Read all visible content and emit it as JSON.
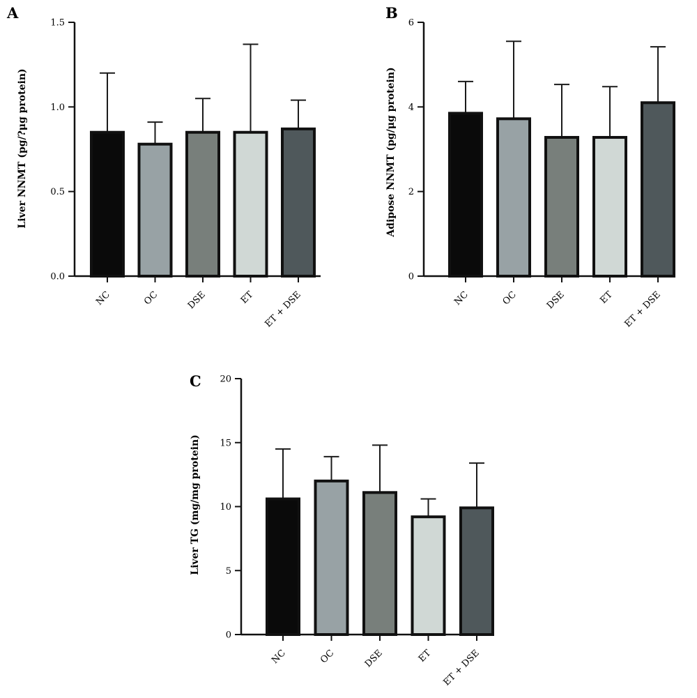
{
  "chart_data": [
    {
      "type": "bar",
      "panel": "A",
      "title": "",
      "xlabel": "",
      "ylabel": "Liver NNMT (pg/?μg protein)",
      "ylim": [
        0,
        1.5
      ],
      "yticks": [
        "0.0",
        "0.5",
        "1.0",
        "1.5"
      ],
      "categories": [
        "NC",
        "OC",
        "DSE",
        "ET",
        "ET + DSE"
      ],
      "values": [
        0.85,
        0.78,
        0.85,
        0.85,
        0.87
      ],
      "error_upper": [
        1.2,
        0.91,
        1.05,
        1.37,
        1.04
      ],
      "colors": [
        "#0a0a0a",
        "#98a2a5",
        "#787f7b",
        "#d0d8d5",
        "#4f585b"
      ]
    },
    {
      "type": "bar",
      "panel": "B",
      "title": "",
      "xlabel": "",
      "ylabel": "Adipose NNMT (pg/μg protein)",
      "ylim": [
        0,
        6
      ],
      "yticks": [
        "0",
        "2",
        "4",
        "6"
      ],
      "categories": [
        "NC",
        "OC",
        "DSE",
        "ET",
        "ET + DSE"
      ],
      "values": [
        3.85,
        3.72,
        3.28,
        3.28,
        4.1
      ],
      "error_upper": [
        4.6,
        5.55,
        4.53,
        4.48,
        5.42
      ],
      "colors": [
        "#0a0a0a",
        "#98a2a5",
        "#787f7b",
        "#d0d8d5",
        "#4f585b"
      ]
    },
    {
      "type": "bar",
      "panel": "C",
      "title": "",
      "xlabel": "",
      "ylabel": "Liver TG (mg/mg protein)",
      "ylim": [
        0,
        20
      ],
      "yticks": [
        "0",
        "5",
        "10",
        "15",
        "20"
      ],
      "categories": [
        "NC",
        "OC",
        "DSE",
        "ET",
        "ET + DSE"
      ],
      "values": [
        10.6,
        12.0,
        11.1,
        9.2,
        9.9
      ],
      "error_upper": [
        14.5,
        13.9,
        14.8,
        10.6,
        13.4
      ],
      "colors": [
        "#0a0a0a",
        "#98a2a5",
        "#787f7b",
        "#d0d8d5",
        "#4f585b"
      ]
    }
  ]
}
